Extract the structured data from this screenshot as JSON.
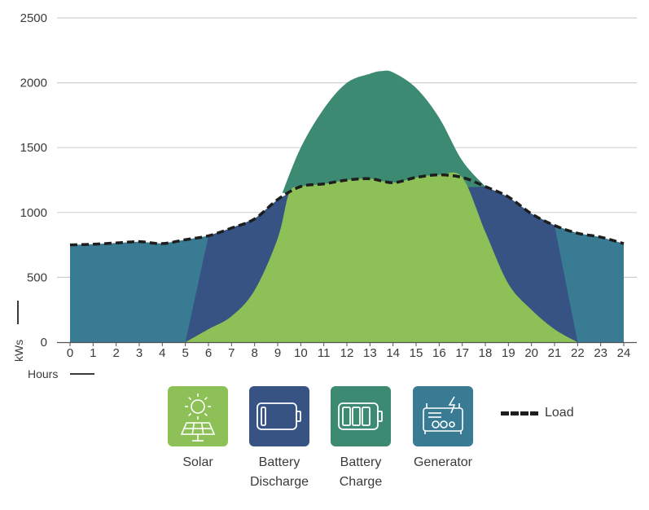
{
  "chart_data": {
    "type": "area",
    "xlabel": "Hours",
    "ylabel": "kWs",
    "xlim": [
      0,
      24
    ],
    "ylim": [
      0,
      2500
    ],
    "x_ticks": [
      "0",
      "1",
      "2",
      "3",
      "4",
      "5",
      "6",
      "7",
      "8",
      "9",
      "10",
      "11",
      "12",
      "13",
      "14",
      "15",
      "16",
      "17",
      "18",
      "19",
      "20",
      "21",
      "22",
      "23",
      "24"
    ],
    "y_ticks": [
      "0",
      "500",
      "1000",
      "1500",
      "2000",
      "2500"
    ],
    "grid": true,
    "series": [
      {
        "name": "Generator",
        "color": "#3a7b94",
        "x": [
          0,
          1,
          2,
          3,
          4,
          5,
          6,
          7,
          8,
          9,
          10,
          11,
          12,
          13,
          14,
          15,
          16,
          17,
          18,
          19,
          20,
          21,
          22,
          23,
          24
        ],
        "y": [
          750,
          755,
          765,
          775,
          760,
          790,
          820,
          880,
          950,
          1100,
          1200,
          1220,
          1250,
          1260,
          1230,
          1270,
          1290,
          1270,
          1200,
          1120,
          990,
          900,
          840,
          810,
          760
        ]
      },
      {
        "name": "Battery Discharge",
        "color": "#365383",
        "x": [
          5,
          6,
          7,
          8,
          9,
          10,
          11,
          12,
          13,
          14,
          15,
          16,
          17,
          18,
          19,
          20,
          21,
          22
        ],
        "y": [
          0,
          820,
          880,
          950,
          1100,
          1200,
          1220,
          1250,
          1260,
          1230,
          1270,
          1290,
          1270,
          1200,
          1120,
          990,
          900,
          0
        ]
      },
      {
        "name": "Battery Charge",
        "color": "#3d8a72",
        "x": [
          9.2,
          10,
          11,
          12,
          13,
          13.5,
          14,
          15,
          16,
          17,
          18
        ],
        "y": [
          1150,
          1500,
          1800,
          2000,
          2070,
          2090,
          2080,
          1960,
          1730,
          1400,
          1200
        ]
      },
      {
        "name": "Solar",
        "color": "#8dc056",
        "x": [
          5,
          6,
          7,
          8,
          9,
          9.5,
          10,
          11,
          12,
          13,
          14,
          15,
          16,
          17,
          18,
          19,
          20,
          21,
          22
        ],
        "y": [
          0,
          100,
          200,
          400,
          800,
          1150,
          1200,
          1220,
          1250,
          1260,
          1230,
          1270,
          1290,
          1270,
          850,
          450,
          250,
          100,
          0
        ]
      },
      {
        "name": "Load",
        "color": "#1e1e1e",
        "x": [
          0,
          1,
          2,
          3,
          4,
          5,
          6,
          7,
          8,
          9,
          10,
          11,
          12,
          13,
          14,
          15,
          16,
          17,
          18,
          19,
          20,
          21,
          22,
          23,
          24
        ],
        "y": [
          750,
          755,
          765,
          775,
          760,
          790,
          820,
          880,
          950,
          1100,
          1200,
          1220,
          1250,
          1260,
          1230,
          1270,
          1290,
          1270,
          1200,
          1120,
          990,
          900,
          840,
          810,
          760
        ]
      }
    ],
    "legend": {
      "placement": "bottom",
      "items": [
        {
          "key": "solar",
          "label": "Solar",
          "color": "#8dc056",
          "icon": "solar-panel-icon"
        },
        {
          "key": "discharge",
          "label": "Battery\nDischarge",
          "color": "#365383",
          "icon": "battery-low-icon"
        },
        {
          "key": "charge",
          "label": "Battery\nCharge",
          "color": "#3d8a72",
          "icon": "battery-full-icon"
        },
        {
          "key": "generator",
          "label": "Generator",
          "color": "#3a7b94",
          "icon": "generator-icon"
        }
      ],
      "load_label": "Load"
    }
  }
}
